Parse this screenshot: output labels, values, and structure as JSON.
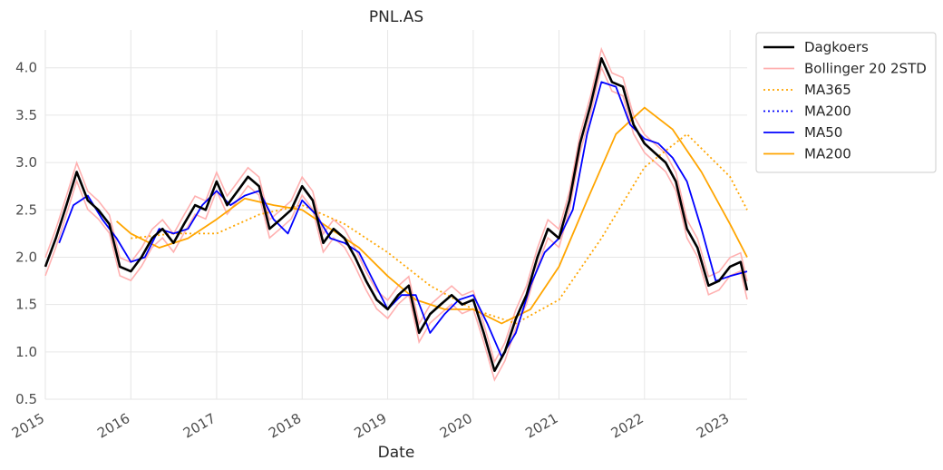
{
  "chart_data": {
    "type": "line",
    "title": "PNL.AS",
    "xlabel": "Date",
    "ylabel": "",
    "xlim": [
      "2015-01-01",
      "2023-03-15"
    ],
    "ylim": [
      0.5,
      4.4
    ],
    "x_ticks": [
      "2015",
      "2016",
      "2017",
      "2018",
      "2019",
      "2020",
      "2021",
      "2022",
      "2023"
    ],
    "y_ticks": [
      0.5,
      1.0,
      1.5,
      2.0,
      2.5,
      3.0,
      3.5,
      4.0
    ],
    "grid": true,
    "legend_position": "outside-top-right",
    "series": [
      {
        "name": "Dagkoers",
        "color": "#000000",
        "style": "solid",
        "x": [
          "2015-01-01",
          "2015-02-15",
          "2015-04-01",
          "2015-05-15",
          "2015-07-01",
          "2015-08-15",
          "2015-10-01",
          "2015-11-15",
          "2016-01-01",
          "2016-02-15",
          "2016-04-01",
          "2016-05-15",
          "2016-07-01",
          "2016-08-15",
          "2016-10-01",
          "2016-11-15",
          "2017-01-01",
          "2017-02-15",
          "2017-04-01",
          "2017-05-15",
          "2017-07-01",
          "2017-08-15",
          "2017-10-01",
          "2017-11-15",
          "2018-01-01",
          "2018-02-15",
          "2018-04-01",
          "2018-05-15",
          "2018-07-01",
          "2018-08-15",
          "2018-10-01",
          "2018-11-15",
          "2019-01-01",
          "2019-02-15",
          "2019-04-01",
          "2019-05-15",
          "2019-07-01",
          "2019-08-15",
          "2019-10-01",
          "2019-11-15",
          "2020-01-01",
          "2020-02-15",
          "2020-04-01",
          "2020-05-15",
          "2020-07-01",
          "2020-08-15",
          "2020-10-01",
          "2020-11-15",
          "2021-01-01",
          "2021-02-15",
          "2021-04-01",
          "2021-05-15",
          "2021-07-01",
          "2021-08-15",
          "2021-10-01",
          "2021-11-15",
          "2022-01-01",
          "2022-02-15",
          "2022-04-01",
          "2022-05-15",
          "2022-07-01",
          "2022-08-15",
          "2022-10-01",
          "2022-11-15",
          "2023-01-01",
          "2023-02-15",
          "2023-03-15"
        ],
        "values": [
          1.9,
          2.2,
          2.55,
          2.9,
          2.6,
          2.5,
          2.35,
          1.9,
          1.85,
          2.0,
          2.2,
          2.3,
          2.15,
          2.35,
          2.55,
          2.5,
          2.8,
          2.55,
          2.7,
          2.85,
          2.75,
          2.3,
          2.4,
          2.5,
          2.75,
          2.6,
          2.15,
          2.3,
          2.2,
          2.0,
          1.75,
          1.55,
          1.45,
          1.6,
          1.7,
          1.2,
          1.4,
          1.5,
          1.6,
          1.5,
          1.55,
          1.2,
          0.8,
          1.0,
          1.35,
          1.6,
          2.0,
          2.3,
          2.2,
          2.6,
          3.2,
          3.6,
          4.1,
          3.85,
          3.8,
          3.4,
          3.2,
          3.1,
          3.0,
          2.8,
          2.3,
          2.1,
          1.7,
          1.75,
          1.9,
          1.95,
          1.65
        ]
      },
      {
        "name": "Bollinger 20 2STD",
        "color": "#ffb0b0",
        "style": "solid",
        "band": true
      },
      {
        "name": "MA365",
        "color": "#ffa500",
        "style": "dotted",
        "x": [
          "2016-01-01",
          "2016-07-01",
          "2017-01-01",
          "2017-07-01",
          "2018-01-01",
          "2018-07-01",
          "2019-01-01",
          "2019-07-01",
          "2020-01-01",
          "2020-07-01",
          "2021-01-01",
          "2021-07-01",
          "2022-01-01",
          "2022-07-01",
          "2023-01-01",
          "2023-03-15"
        ],
        "values": [
          2.2,
          2.25,
          2.25,
          2.45,
          2.55,
          2.35,
          2.05,
          1.7,
          1.45,
          1.3,
          1.55,
          2.2,
          2.95,
          3.3,
          2.85,
          2.5
        ]
      },
      {
        "name": "MA200",
        "color": "#0000ff",
        "style": "dotted"
      },
      {
        "name": "MA50",
        "color": "#0000ff",
        "style": "solid",
        "x": [
          "2015-03-01",
          "2015-05-01",
          "2015-07-01",
          "2015-09-01",
          "2015-11-01",
          "2016-01-01",
          "2016-03-01",
          "2016-05-01",
          "2016-07-01",
          "2016-09-01",
          "2016-11-01",
          "2017-01-01",
          "2017-03-01",
          "2017-05-01",
          "2017-07-01",
          "2017-09-01",
          "2017-11-01",
          "2018-01-01",
          "2018-03-01",
          "2018-05-01",
          "2018-07-01",
          "2018-09-01",
          "2018-11-01",
          "2019-01-01",
          "2019-03-01",
          "2019-05-01",
          "2019-07-01",
          "2019-09-01",
          "2019-11-01",
          "2020-01-01",
          "2020-03-01",
          "2020-05-01",
          "2020-07-01",
          "2020-09-01",
          "2020-11-01",
          "2021-01-01",
          "2021-03-01",
          "2021-05-01",
          "2021-07-01",
          "2021-09-01",
          "2021-11-01",
          "2022-01-01",
          "2022-03-01",
          "2022-05-01",
          "2022-07-01",
          "2022-09-01",
          "2022-11-01",
          "2023-01-01",
          "2023-03-15"
        ],
        "values": [
          2.15,
          2.55,
          2.65,
          2.4,
          2.2,
          1.95,
          2.0,
          2.3,
          2.25,
          2.3,
          2.55,
          2.7,
          2.55,
          2.65,
          2.7,
          2.4,
          2.25,
          2.6,
          2.45,
          2.2,
          2.15,
          2.05,
          1.75,
          1.45,
          1.6,
          1.6,
          1.2,
          1.4,
          1.55,
          1.6,
          1.3,
          0.95,
          1.2,
          1.7,
          2.05,
          2.2,
          2.5,
          3.3,
          3.85,
          3.8,
          3.4,
          3.25,
          3.2,
          3.05,
          2.8,
          2.3,
          1.75,
          1.8,
          1.85
        ]
      },
      {
        "name": "MA200",
        "color": "#ffa500",
        "style": "solid",
        "x": [
          "2015-11-01",
          "2016-01-01",
          "2016-05-01",
          "2016-09-01",
          "2017-01-01",
          "2017-05-01",
          "2017-09-01",
          "2018-01-01",
          "2018-05-01",
          "2018-09-01",
          "2019-01-01",
          "2019-05-01",
          "2019-09-01",
          "2020-01-01",
          "2020-05-01",
          "2020-09-01",
          "2021-01-01",
          "2021-05-01",
          "2021-09-01",
          "2022-01-01",
          "2022-05-01",
          "2022-09-01",
          "2023-01-01",
          "2023-03-15"
        ],
        "values": [
          2.38,
          2.25,
          2.1,
          2.2,
          2.4,
          2.62,
          2.55,
          2.5,
          2.3,
          2.1,
          1.8,
          1.55,
          1.45,
          1.45,
          1.3,
          1.45,
          1.9,
          2.6,
          3.3,
          3.58,
          3.35,
          2.9,
          2.35,
          2.0
        ]
      }
    ]
  }
}
